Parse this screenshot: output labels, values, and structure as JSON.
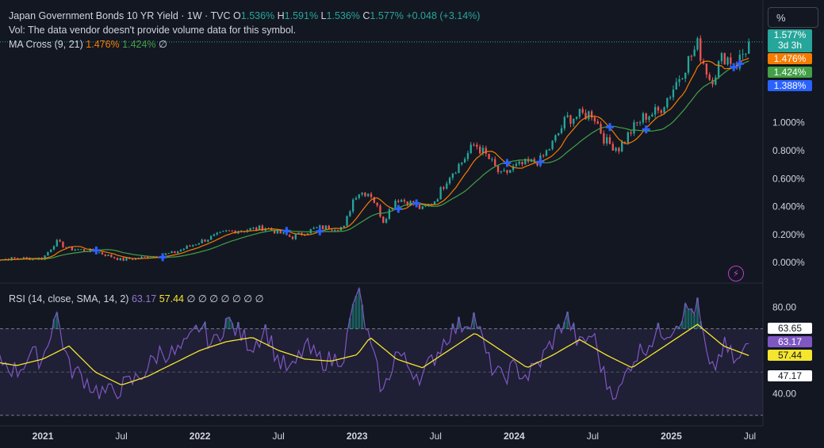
{
  "header": {
    "symbol_line": "Japan Government Bonds 10 YR Yield · 1W · TVC",
    "ohlc": [
      {
        "k": "O",
        "v": "1.536%"
      },
      {
        "k": "H",
        "v": "1.591%"
      },
      {
        "k": "L",
        "v": "1.536%"
      },
      {
        "k": "C",
        "v": "1.577%"
      }
    ],
    "change": "+0.048 (+3.14%)",
    "vol_note": "Vol: The data vendor doesn't provide volume data for this symbol.",
    "ma_name": "MA Cross (9, 21)",
    "ma_fast": "1.476%",
    "ma_slow": "1.424%",
    "ma_null": "∅"
  },
  "unit_button": "%",
  "price_pills": {
    "last": "1.577%",
    "countdown": "3d 3h",
    "fast": "1.476%",
    "slow": "1.424%",
    "cross": "1.388%"
  },
  "rsi_header": {
    "name": "RSI (14, close, SMA, 14, 2)",
    "rsi": "63.17",
    "sma": "57.44",
    "nulls": "∅ ∅ ∅ ∅ ∅ ∅ ∅"
  },
  "rsi_pills": {
    "upper": "63.65",
    "rsi": "63.17",
    "sma": "57.44",
    "lower": "47.17"
  },
  "colors": {
    "bg": "#131722",
    "up": "#26a69a",
    "down": "#ef5350",
    "fast": "#f57c00",
    "slow": "#43a047",
    "cross": "#2962ff",
    "rsi": "#7e57c2",
    "rsi_sma": "#f5e52f"
  },
  "chart_data": [
    {
      "type": "candlestick",
      "title": "Japan Government Bonds 10 YR Yield · 1W · TVC",
      "x_range": [
        "2020-09",
        "2025-08"
      ],
      "y_ticks": [
        "0.000%",
        "0.200%",
        "0.400%",
        "0.600%",
        "0.800%",
        "1.000%"
      ],
      "y_tick_values": [
        0,
        0.2,
        0.4,
        0.6,
        0.8,
        1.0
      ],
      "ylim": [
        -0.05,
        1.65
      ],
      "x_ticks": [
        {
          "label": "2021",
          "date": "2021-01"
        },
        {
          "label": "Jul",
          "date": "2021-07"
        },
        {
          "label": "2022",
          "date": "2022-01"
        },
        {
          "label": "Jul",
          "date": "2022-07"
        },
        {
          "label": "2023",
          "date": "2023-01"
        },
        {
          "label": "Jul",
          "date": "2023-07"
        },
        {
          "label": "2024",
          "date": "2024-01"
        },
        {
          "label": "Jul",
          "date": "2024-07"
        },
        {
          "label": "2025",
          "date": "2025-01"
        },
        {
          "label": "Jul",
          "date": "2025-07"
        }
      ],
      "close_series": [
        [
          "2020-09",
          0.02
        ],
        [
          "2020-11",
          0.03
        ],
        [
          "2021-01",
          0.03
        ],
        [
          "2021-02",
          0.15
        ],
        [
          "2021-03",
          0.1
        ],
        [
          "2021-05",
          0.08
        ],
        [
          "2021-07",
          0.02
        ],
        [
          "2021-09",
          0.04
        ],
        [
          "2021-11",
          0.07
        ],
        [
          "2022-01",
          0.15
        ],
        [
          "2022-03",
          0.22
        ],
        [
          "2022-05",
          0.24
        ],
        [
          "2022-06",
          0.25
        ],
        [
          "2022-08",
          0.18
        ],
        [
          "2022-10",
          0.25
        ],
        [
          "2022-12",
          0.25
        ],
        [
          "2022-12-22",
          0.45
        ],
        [
          "2023-01",
          0.5
        ],
        [
          "2023-02",
          0.5
        ],
        [
          "2023-03",
          0.3
        ],
        [
          "2023-04",
          0.46
        ],
        [
          "2023-05",
          0.43
        ],
        [
          "2023-06",
          0.38
        ],
        [
          "2023-07",
          0.45
        ],
        [
          "2023-08",
          0.62
        ],
        [
          "2023-09",
          0.72
        ],
        [
          "2023-10",
          0.85
        ],
        [
          "2023-11",
          0.75
        ],
        [
          "2023-12",
          0.62
        ],
        [
          "2024-01",
          0.68
        ],
        [
          "2024-02",
          0.71
        ],
        [
          "2024-03",
          0.73
        ],
        [
          "2024-04",
          0.86
        ],
        [
          "2024-05",
          1.03
        ],
        [
          "2024-06",
          1.05
        ],
        [
          "2024-07",
          1.07
        ],
        [
          "2024-08",
          0.86
        ],
        [
          "2024-09",
          0.82
        ],
        [
          "2024-10",
          0.95
        ],
        [
          "2024-11",
          1.05
        ],
        [
          "2024-12",
          1.08
        ],
        [
          "2025-01",
          1.22
        ],
        [
          "2025-02",
          1.4
        ],
        [
          "2025-03",
          1.55
        ],
        [
          "2025-04",
          1.3
        ],
        [
          "2025-05",
          1.48
        ],
        [
          "2025-06",
          1.42
        ],
        [
          "2025-07",
          1.577
        ]
      ],
      "ma_fast_last": 1.476,
      "ma_slow_last": 1.424,
      "cross_marker_last": 1.388
    },
    {
      "type": "line",
      "title": "RSI (14, close, SMA, 14, 2)",
      "y_ticks": [
        "40.00",
        "80.00"
      ],
      "y_tick_values": [
        40,
        80
      ],
      "ylim": [
        27,
        90
      ],
      "band_levels": [
        63.65,
        47.17
      ],
      "series": [
        {
          "values": [
            [
              "2020-09",
              52
            ],
            [
              "2020-10",
              55
            ],
            [
              "2020-11",
              50
            ],
            [
              "2020-12",
              58
            ],
            [
              "2021-01",
              56
            ],
            [
              "2021-02",
              78
            ],
            [
              "2021-03",
              52
            ],
            [
              "2021-04",
              48
            ],
            [
              "2021-05",
              42
            ],
            [
              "2021-06",
              40
            ],
            [
              "2021-07",
              43
            ],
            [
              "2021-08",
              46
            ],
            [
              "2021-09",
              52
            ],
            [
              "2021-10",
              60
            ],
            [
              "2021-11",
              58
            ],
            [
              "2021-12",
              62
            ],
            [
              "2022-01",
              72
            ],
            [
              "2022-02",
              62
            ],
            [
              "2022-03",
              74
            ],
            [
              "2022-04",
              68
            ],
            [
              "2022-05",
              62
            ],
            [
              "2022-06",
              70
            ],
            [
              "2022-07",
              55
            ],
            [
              "2022-08",
              50
            ],
            [
              "2022-09",
              62
            ],
            [
              "2022-10",
              56
            ],
            [
              "2022-11",
              55
            ],
            [
              "2022-12",
              58
            ],
            [
              "2023-01",
              89
            ],
            [
              "2023-02",
              62
            ],
            [
              "2023-03",
              40
            ],
            [
              "2023-04",
              60
            ],
            [
              "2023-05",
              52
            ],
            [
              "2023-06",
              48
            ],
            [
              "2023-07",
              58
            ],
            [
              "2023-08",
              68
            ],
            [
              "2023-09",
              72
            ],
            [
              "2023-10",
              76
            ],
            [
              "2023-11",
              55
            ],
            [
              "2023-12",
              47
            ],
            [
              "2024-01",
              52
            ],
            [
              "2024-02",
              48
            ],
            [
              "2024-03",
              55
            ],
            [
              "2024-04",
              65
            ],
            [
              "2024-05",
              76
            ],
            [
              "2024-06",
              62
            ],
            [
              "2024-07",
              68
            ],
            [
              "2024-08",
              45
            ],
            [
              "2024-09",
              40
            ],
            [
              "2024-10",
              56
            ],
            [
              "2024-11",
              62
            ],
            [
              "2024-12",
              68
            ],
            [
              "2025-01",
              70
            ],
            [
              "2025-02",
              78
            ],
            [
              "2025-03",
              80
            ],
            [
              "2025-04",
              48
            ],
            [
              "2025-05",
              62
            ],
            [
              "2025-06",
              54
            ],
            [
              "2025-07",
              63.17
            ]
          ]
        },
        {
          "values": [
            [
              "2020-09",
              55
            ],
            [
              "2020-11",
              53
            ],
            [
              "2021-01",
              56
            ],
            [
              "2021-03",
              62
            ],
            [
              "2021-05",
              50
            ],
            [
              "2021-07",
              44
            ],
            [
              "2021-09",
              48
            ],
            [
              "2021-11",
              54
            ],
            [
              "2022-01",
              60
            ],
            [
              "2022-03",
              64
            ],
            [
              "2022-05",
              66
            ],
            [
              "2022-07",
              60
            ],
            [
              "2022-09",
              56
            ],
            [
              "2022-11",
              55
            ],
            [
              "2023-01",
              58
            ],
            [
              "2023-02",
              66
            ],
            [
              "2023-04",
              56
            ],
            [
              "2023-06",
              52
            ],
            [
              "2023-08",
              60
            ],
            [
              "2023-10",
              68
            ],
            [
              "2023-12",
              60
            ],
            [
              "2024-02",
              52
            ],
            [
              "2024-04",
              58
            ],
            [
              "2024-06",
              65
            ],
            [
              "2024-08",
              58
            ],
            [
              "2024-10",
              52
            ],
            [
              "2024-12",
              60
            ],
            [
              "2025-02",
              68
            ],
            [
              "2025-03",
              72
            ],
            [
              "2025-05",
              62
            ],
            [
              "2025-07",
              57.44
            ]
          ]
        }
      ]
    }
  ]
}
